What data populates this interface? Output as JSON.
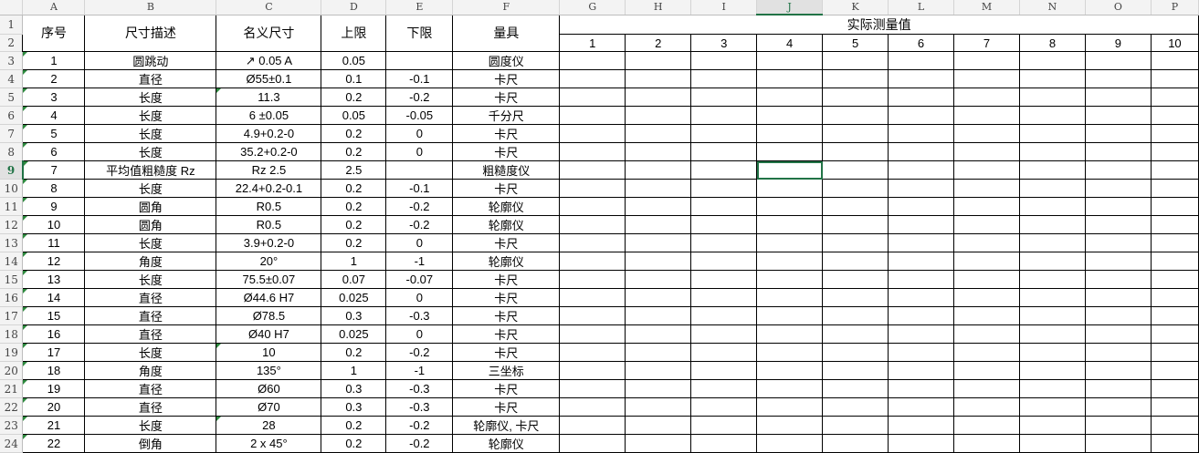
{
  "columns": [
    "A",
    "B",
    "C",
    "D",
    "E",
    "F",
    "G",
    "H",
    "I",
    "J",
    "K",
    "L",
    "M",
    "N",
    "O",
    "P"
  ],
  "selected": {
    "column": "J",
    "row": 9
  },
  "header": {
    "no": "序号",
    "desc": "尺寸描述",
    "nominal": "名义尺寸",
    "upper": "上限",
    "lower": "下限",
    "gauge": "量具",
    "measured": "实际测量值"
  },
  "measure_cols": [
    "1",
    "2",
    "3",
    "4",
    "5",
    "6",
    "7",
    "8",
    "9",
    "10"
  ],
  "rows": [
    {
      "no": "1",
      "desc": "圆跳动",
      "nominal": "↗ 0.05 A",
      "upper": "0.05",
      "lower": "",
      "gauge": "圆度仪"
    },
    {
      "no": "2",
      "desc": "直径",
      "nominal": "Ø55±0.1",
      "upper": "0.1",
      "lower": "-0.1",
      "gauge": "卡尺"
    },
    {
      "no": "3",
      "desc": "长度",
      "nominal": "11.3",
      "upper": "0.2",
      "lower": "-0.2",
      "gauge": "卡尺",
      "c_flag": true
    },
    {
      "no": "4",
      "desc": "长度",
      "nominal": "6 ±0.05",
      "upper": "0.05",
      "lower": "-0.05",
      "gauge": "千分尺"
    },
    {
      "no": "5",
      "desc": "长度",
      "nominal": "4.9+0.2-0",
      "upper": "0.2",
      "lower": "0",
      "gauge": "卡尺"
    },
    {
      "no": "6",
      "desc": "长度",
      "nominal": "35.2+0.2-0",
      "upper": "0.2",
      "lower": "0",
      "gauge": "卡尺"
    },
    {
      "no": "7",
      "desc": "平均值粗糙度 Rz",
      "nominal": "Rz 2.5",
      "upper": "2.5",
      "lower": "",
      "gauge": "粗糙度仪"
    },
    {
      "no": "8",
      "desc": "长度",
      "nominal": "22.4+0.2-0.1",
      "upper": "0.2",
      "lower": "-0.1",
      "gauge": "卡尺"
    },
    {
      "no": "9",
      "desc": "圆角",
      "nominal": "R0.5",
      "upper": "0.2",
      "lower": "-0.2",
      "gauge": "轮廓仪"
    },
    {
      "no": "10",
      "desc": "圆角",
      "nominal": "R0.5",
      "upper": "0.2",
      "lower": "-0.2",
      "gauge": "轮廓仪"
    },
    {
      "no": "11",
      "desc": "长度",
      "nominal": "3.9+0.2-0",
      "upper": "0.2",
      "lower": "0",
      "gauge": "卡尺"
    },
    {
      "no": "12",
      "desc": "角度",
      "nominal": "20°",
      "upper": "1",
      "lower": "-1",
      "gauge": "轮廓仪"
    },
    {
      "no": "13",
      "desc": "长度",
      "nominal": "75.5±0.07",
      "upper": "0.07",
      "lower": "-0.07",
      "gauge": "卡尺"
    },
    {
      "no": "14",
      "desc": "直径",
      "nominal": "Ø44.6 H7",
      "upper": "0.025",
      "lower": "0",
      "gauge": "卡尺"
    },
    {
      "no": "15",
      "desc": "直径",
      "nominal": "Ø78.5",
      "upper": "0.3",
      "lower": "-0.3",
      "gauge": "卡尺"
    },
    {
      "no": "16",
      "desc": "直径",
      "nominal": "Ø40 H7",
      "upper": "0.025",
      "lower": "0",
      "gauge": "卡尺"
    },
    {
      "no": "17",
      "desc": "长度",
      "nominal": "10",
      "upper": "0.2",
      "lower": "-0.2",
      "gauge": "卡尺",
      "c_flag": true
    },
    {
      "no": "18",
      "desc": "角度",
      "nominal": "135°",
      "upper": "1",
      "lower": "-1",
      "gauge": "三坐标"
    },
    {
      "no": "19",
      "desc": "直径",
      "nominal": "Ø60",
      "upper": "0.3",
      "lower": "-0.3",
      "gauge": "卡尺"
    },
    {
      "no": "20",
      "desc": "直径",
      "nominal": "Ø70",
      "upper": "0.3",
      "lower": "-0.3",
      "gauge": "卡尺"
    },
    {
      "no": "21",
      "desc": "长度",
      "nominal": "28",
      "upper": "0.2",
      "lower": "-0.2",
      "gauge": "轮廓仪, 卡尺",
      "c_flag": true
    },
    {
      "no": "22",
      "desc": "倒角",
      "nominal": "2 x 45°",
      "upper": "0.2",
      "lower": "-0.2",
      "gauge": "轮廓仪"
    }
  ]
}
